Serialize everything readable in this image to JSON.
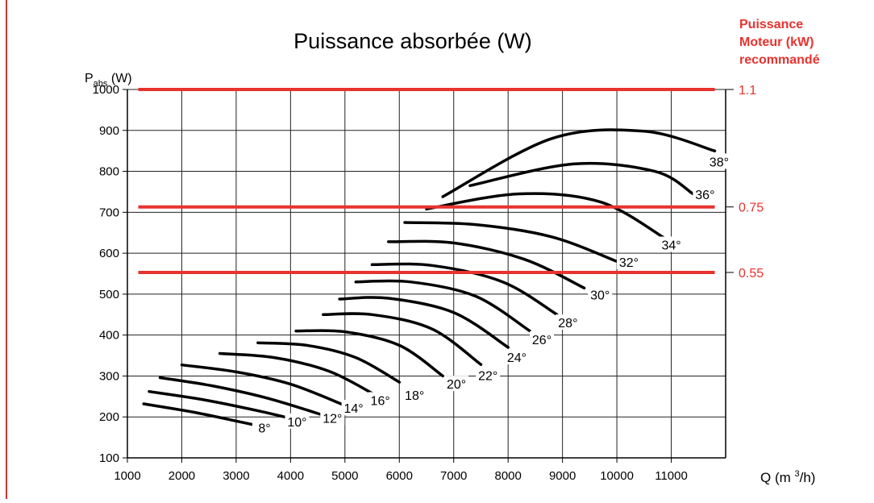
{
  "chart_data": {
    "type": "line",
    "title": "Puissance absorbée (W)",
    "ylabel": {
      "main": "P",
      "sub": "abs",
      "unit": " (W)"
    },
    "xlabel": {
      "main": "Q  (m ",
      "sup": "3",
      "unit": "/h)"
    },
    "secondary_axis_title": [
      "Puissance",
      "Moteur (kW)",
      "recommandé"
    ],
    "xlim": [
      1000,
      12000
    ],
    "ylim": [
      100,
      1000
    ],
    "x_ticks": [
      1000,
      2000,
      3000,
      4000,
      5000,
      6000,
      7000,
      8000,
      9000,
      10000,
      11000
    ],
    "y_ticks": [
      100,
      200,
      300,
      400,
      500,
      600,
      700,
      800,
      900,
      1000
    ],
    "grid": true,
    "reference_lines": [
      {
        "label": "1.1",
        "y": 1000,
        "x_start": 1200,
        "x_end": 11800
      },
      {
        "label": "0.75",
        "y": 713,
        "x_start": 1200,
        "x_end": 11800
      },
      {
        "label": "0.55",
        "y": 553,
        "x_start": 1200,
        "x_end": 11800
      }
    ],
    "series": [
      {
        "name": "8°",
        "x": [
          1300,
          2200,
          3000,
          3600
        ],
        "y": [
          232,
          212,
          190,
          173
        ],
        "label_at": [
          3520,
          168
        ]
      },
      {
        "name": "10°",
        "x": [
          1400,
          2400,
          3400,
          4200
        ],
        "y": [
          262,
          242,
          215,
          190
        ],
        "label_at": [
          4120,
          183
        ]
      },
      {
        "name": "12°",
        "x": [
          1600,
          2600,
          3600,
          4700
        ],
        "y": [
          296,
          275,
          245,
          200
        ],
        "label_at": [
          4770,
          192
        ]
      },
      {
        "name": "14°",
        "x": [
          2000,
          3000,
          4000,
          5000
        ],
        "y": [
          327,
          310,
          280,
          228
        ],
        "label_at": [
          5160,
          216
        ]
      },
      {
        "name": "16°",
        "x": [
          2700,
          3700,
          4700,
          5500
        ],
        "y": [
          355,
          345,
          312,
          258
        ],
        "label_at": [
          5650,
          235
        ]
      },
      {
        "name": "18°",
        "x": [
          3400,
          4300,
          5200,
          6000
        ],
        "y": [
          381,
          375,
          345,
          285
        ],
        "label_at": [
          6280,
          248
        ]
      },
      {
        "name": "20°",
        "x": [
          4100,
          5000,
          6000,
          6800
        ],
        "y": [
          410,
          408,
          375,
          300
        ],
        "label_at": [
          7050,
          275
        ]
      },
      {
        "name": "22°",
        "x": [
          4600,
          5500,
          6600,
          7500
        ],
        "y": [
          450,
          450,
          415,
          328
        ],
        "label_at": [
          7630,
          296
        ]
      },
      {
        "name": "24°",
        "x": [
          4900,
          5800,
          7000,
          8000
        ],
        "y": [
          488,
          490,
          455,
          370
        ],
        "label_at": [
          8160,
          340
        ]
      },
      {
        "name": "26°",
        "x": [
          5200,
          6200,
          7400,
          8400
        ],
        "y": [
          530,
          530,
          495,
          410
        ],
        "label_at": [
          8620,
          384
        ]
      },
      {
        "name": "28°",
        "x": [
          5500,
          6600,
          7900,
          8900
        ],
        "y": [
          572,
          570,
          530,
          450
        ],
        "label_at": [
          9100,
          425
        ]
      },
      {
        "name": "30°",
        "x": [
          5800,
          7000,
          8300,
          9400
        ],
        "y": [
          628,
          625,
          585,
          515
        ],
        "label_at": [
          9690,
          493
        ]
      },
      {
        "name": "32°",
        "x": [
          6100,
          7400,
          8800,
          10000
        ],
        "y": [
          675,
          670,
          640,
          580
        ],
        "label_at": [
          10220,
          573
        ]
      },
      {
        "name": "34°",
        "x": [
          6500,
          8200,
          9700,
          10900
        ],
        "y": [
          708,
          745,
          725,
          635
        ],
        "label_at": [
          11000,
          615
        ]
      },
      {
        "name": "36°",
        "x": [
          7300,
          9200,
          10700,
          11400
        ],
        "y": [
          765,
          818,
          800,
          745
        ],
        "label_at": [
          11620,
          738
        ]
      },
      {
        "name": "38°",
        "x": [
          6800,
          8800,
          10500,
          11800
        ],
        "y": [
          738,
          880,
          898,
          850
        ],
        "label_at": [
          11880,
          818
        ]
      }
    ]
  }
}
